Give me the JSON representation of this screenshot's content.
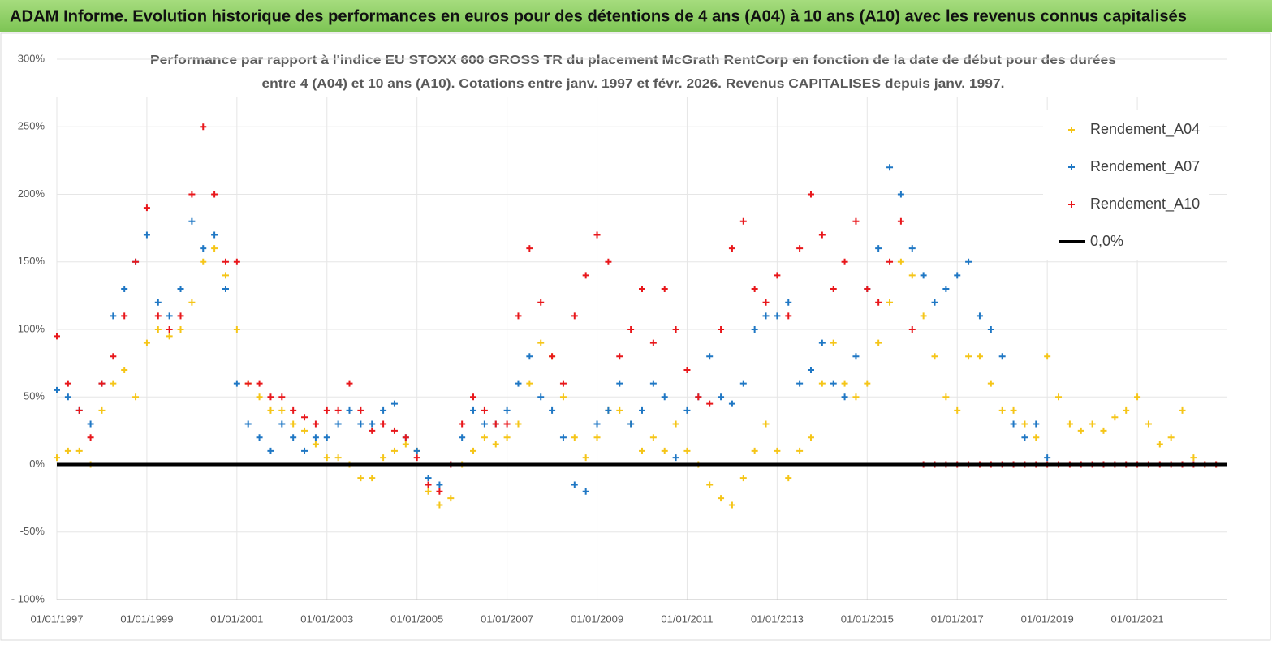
{
  "header": {
    "title": "ADAM Informe. Evolution historique des performances en euros pour des détentions de 4 ans (A04) à 10 ans (A10) avec les revenus connus capitalisés"
  },
  "chart_data": {
    "type": "scatter",
    "title": [
      "Performance par rapport à l'indice EU STOXX 600 GROSS TR  du placement McGrath RentCorp en fonction de la date de début pour des durées",
      "entre 4 (A04) et 10 ans (A10).  Cotations entre janv. 1997 et févr. 2026. Revenus  CAPITALISES depuis janv. 1997."
    ],
    "xlim": [
      1997,
      2023
    ],
    "xticks": [
      {
        "value": 1997,
        "label": "01/01/1997"
      },
      {
        "value": 1999,
        "label": "01/01/1999"
      },
      {
        "value": 2001,
        "label": "01/01/2001"
      },
      {
        "value": 2003,
        "label": "01/01/2003"
      },
      {
        "value": 2005,
        "label": "01/01/2005"
      },
      {
        "value": 2007,
        "label": "01/01/2007"
      },
      {
        "value": 2009,
        "label": "01/01/2009"
      },
      {
        "value": 2011,
        "label": "01/01/2011"
      },
      {
        "value": 2013,
        "label": "01/01/2013"
      },
      {
        "value": 2015,
        "label": "01/01/2015"
      },
      {
        "value": 2017,
        "label": "01/01/2017"
      },
      {
        "value": 2019,
        "label": "01/01/2019"
      },
      {
        "value": 2021,
        "label": "01/01/2021"
      }
    ],
    "ylim": [
      -100,
      300
    ],
    "yticks": [
      {
        "value": -100,
        "label": "- 100%"
      },
      {
        "value": -50,
        "label": "-50%"
      },
      {
        "value": 0,
        "label": "0%"
      },
      {
        "value": 50,
        "label": "50%"
      },
      {
        "value": 100,
        "label": "100%"
      },
      {
        "value": 150,
        "label": "150%"
      },
      {
        "value": 200,
        "label": "200%"
      },
      {
        "value": 250,
        "label": "250%"
      },
      {
        "value": 300,
        "label": "300%"
      }
    ],
    "grid": true,
    "legend": "top-right",
    "x": [
      1997,
      1997.25,
      1997.5,
      1997.75,
      1998,
      1998.25,
      1998.5,
      1998.75,
      1999,
      1999.25,
      1999.5,
      1999.75,
      2000,
      2000.25,
      2000.5,
      2000.75,
      2001,
      2001.25,
      2001.5,
      2001.75,
      2002,
      2002.25,
      2002.5,
      2002.75,
      2003,
      2003.25,
      2003.5,
      2003.75,
      2004,
      2004.25,
      2004.5,
      2004.75,
      2005,
      2005.25,
      2005.5,
      2005.75,
      2006,
      2006.25,
      2006.5,
      2006.75,
      2007,
      2007.25,
      2007.5,
      2007.75,
      2008,
      2008.25,
      2008.5,
      2008.75,
      2009,
      2009.25,
      2009.5,
      2009.75,
      2010,
      2010.25,
      2010.5,
      2010.75,
      2011,
      2011.25,
      2011.5,
      2011.75,
      2012,
      2012.25,
      2012.5,
      2012.75,
      2013,
      2013.25,
      2013.5,
      2013.75,
      2014,
      2014.25,
      2014.5,
      2014.75,
      2015,
      2015.25,
      2015.5,
      2015.75,
      2016,
      2016.25,
      2016.5,
      2016.75,
      2017,
      2017.25,
      2017.5,
      2017.75,
      2018,
      2018.25,
      2018.5,
      2018.75,
      2019,
      2019.25,
      2019.5,
      2019.75,
      2020,
      2020.25,
      2020.5,
      2020.75,
      2021,
      2021.25,
      2021.5,
      2021.75,
      2022,
      2022.25,
      2022.5,
      2022.75
    ],
    "series": [
      {
        "name": "Rendement_A04",
        "color": "#f5c518",
        "values": [
          5,
          10,
          10,
          0,
          40,
          60,
          70,
          50,
          90,
          100,
          95,
          100,
          120,
          150,
          160,
          140,
          100,
          60,
          50,
          40,
          40,
          30,
          25,
          15,
          5,
          5,
          0,
          -10,
          -10,
          5,
          10,
          15,
          10,
          -20,
          -30,
          -25,
          0,
          10,
          20,
          15,
          20,
          30,
          60,
          90,
          80,
          50,
          20,
          5,
          20,
          40,
          40,
          30,
          10,
          20,
          10,
          30,
          10,
          0,
          -15,
          -25,
          -30,
          -10,
          10,
          30,
          10,
          -10,
          10,
          20,
          60,
          90,
          60,
          50,
          60,
          90,
          120,
          150,
          140,
          110,
          80,
          50,
          40,
          80,
          80,
          60,
          40,
          40,
          30,
          20,
          80,
          50,
          30,
          25,
          30,
          25,
          35,
          40,
          50,
          30,
          15,
          20,
          40,
          5,
          0,
          0
        ]
      },
      {
        "name": "Rendement_A07",
        "color": "#1f77c4",
        "values": [
          55,
          50,
          40,
          30,
          60,
          110,
          130,
          150,
          170,
          120,
          110,
          130,
          180,
          160,
          170,
          130,
          60,
          30,
          20,
          10,
          30,
          20,
          10,
          20,
          20,
          30,
          40,
          30,
          30,
          40,
          45,
          20,
          10,
          -10,
          -15,
          0,
          20,
          40,
          30,
          30,
          40,
          60,
          80,
          50,
          40,
          20,
          -15,
          -20,
          30,
          40,
          60,
          30,
          40,
          60,
          50,
          5,
          40,
          50,
          80,
          50,
          45,
          60,
          100,
          110,
          110,
          120,
          60,
          70,
          90,
          60,
          50,
          80,
          130,
          160,
          220,
          200,
          160,
          140,
          120,
          130,
          140,
          150,
          110,
          100,
          80,
          30,
          20,
          30,
          5,
          null,
          null,
          null,
          null,
          null,
          null,
          null,
          null,
          null,
          null,
          null,
          null,
          null,
          null,
          null
        ]
      },
      {
        "name": "Rendement_A10",
        "color": "#e8171b",
        "values": [
          95,
          60,
          40,
          20,
          60,
          80,
          110,
          150,
          190,
          110,
          100,
          110,
          200,
          250,
          200,
          150,
          150,
          60,
          60,
          50,
          50,
          40,
          35,
          30,
          40,
          40,
          60,
          40,
          25,
          30,
          25,
          20,
          5,
          -15,
          -20,
          0,
          30,
          50,
          40,
          30,
          30,
          110,
          160,
          120,
          80,
          60,
          110,
          140,
          170,
          150,
          80,
          100,
          130,
          90,
          130,
          100,
          70,
          50,
          45,
          100,
          160,
          180,
          130,
          120,
          140,
          110,
          160,
          200,
          170,
          130,
          150,
          180,
          130,
          120,
          150,
          180,
          100,
          0,
          0,
          0,
          0,
          0,
          0,
          0,
          0,
          0,
          0,
          0,
          0,
          0,
          0,
          0,
          0,
          0,
          0,
          0,
          0,
          0,
          0,
          0,
          0,
          0,
          0,
          0
        ]
      },
      {
        "name": "0,0%",
        "color": "#000000",
        "mode": "line",
        "x": [
          1997,
          2023
        ],
        "values": [
          0,
          0
        ]
      }
    ]
  }
}
